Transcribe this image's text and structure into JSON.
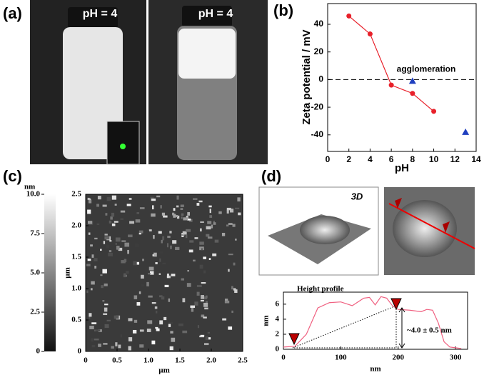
{
  "figure": {
    "panels": [
      "(a)",
      "(b)",
      "(c)",
      "(d)"
    ],
    "photo_labels": [
      "pH = 4",
      "pH = 4"
    ],
    "view_3d": "3D"
  },
  "chart_data": [
    {
      "type": "scatter",
      "xlabel": "pH",
      "ylabel": "Zeta potential / mV",
      "xlim": [
        0,
        14
      ],
      "ylim": [
        -52,
        55
      ],
      "xticks": [
        0,
        2,
        4,
        6,
        8,
        10,
        12,
        14
      ],
      "yticks": [
        -40,
        -20,
        0,
        20,
        40
      ],
      "hline": 0,
      "annotation": "agglomeration",
      "series": [
        {
          "color": "#e8202a",
          "marker": "circle",
          "line": true,
          "x": [
            2,
            4,
            6,
            8,
            10
          ],
          "values": [
            46,
            33,
            -4,
            -10,
            -23
          ]
        },
        {
          "color": "#1f3fbf",
          "marker": "triangle",
          "line": false,
          "x": [
            8,
            13
          ],
          "values": [
            -1,
            -38
          ]
        }
      ]
    },
    {
      "type": "heatmap",
      "xlabel": "µm",
      "ylabel": "µm",
      "xlim": [
        0,
        2.5
      ],
      "ylim": [
        0,
        2.5
      ],
      "xticks": [
        0,
        0.5,
        {
          "value": 1,
          "label": "1.0"
        },
        1.5,
        {
          "value": 2,
          "label": "2.0"
        },
        2.5
      ],
      "yticks": [
        0,
        0.5,
        {
          "value": 1,
          "label": "1.0"
        },
        1.5,
        {
          "value": 2,
          "label": "2.0"
        },
        2.5
      ],
      "colorbar": {
        "label": "nm",
        "lim": [
          0,
          10
        ],
        "ticks": [
          0,
          2.5,
          {
            "value": 5,
            "label": "5.0"
          },
          7.5,
          {
            "value": 10,
            "label": "10.0"
          }
        ]
      }
    },
    {
      "type": "line",
      "title": "Height profile",
      "xlabel": "nm",
      "ylabel": "nm",
      "xlim": [
        0,
        321
      ],
      "ylim": [
        0,
        7.6
      ],
      "xticks": [
        0,
        100,
        200,
        300
      ],
      "yticks": [
        0,
        2,
        4,
        6
      ],
      "annotation": "~4.0 ± 0.5 nm",
      "color": "#f06080",
      "x": [
        0,
        20,
        40,
        60,
        80,
        100,
        120,
        140,
        150,
        160,
        170,
        180,
        190,
        200,
        220,
        240,
        250,
        260,
        270,
        280,
        290,
        300,
        310
      ],
      "values": [
        0.3,
        0.4,
        2,
        5.5,
        6.2,
        6.3,
        5.8,
        6.8,
        6.9,
        5.9,
        7,
        6.8,
        5.8,
        5.3,
        5.2,
        5,
        5.3,
        5.2,
        3.5,
        1,
        0.3,
        0.2,
        0.1
      ]
    }
  ]
}
